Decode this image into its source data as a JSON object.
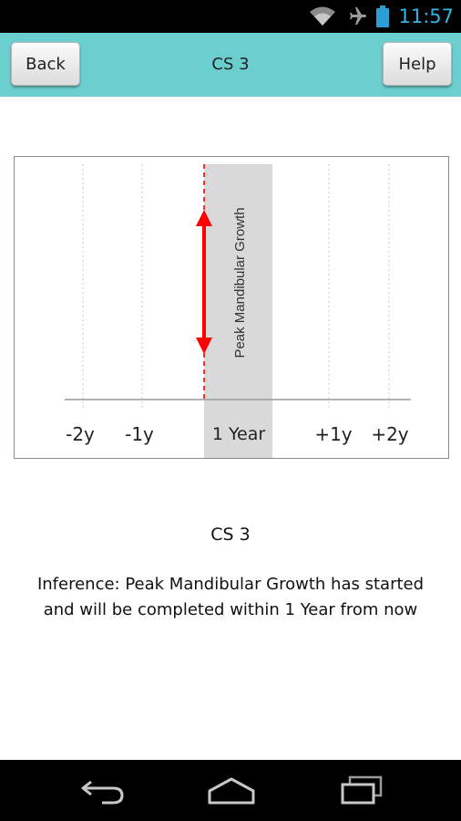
{
  "status_bar": {
    "time": "11:57",
    "icons": [
      "wifi-icon",
      "airplane-icon",
      "battery-icon"
    ]
  },
  "header": {
    "title": "CS 3",
    "back_label": "Back",
    "help_label": "Help",
    "background": "#6ccfcf"
  },
  "chart_data": {
    "type": "timeline",
    "tick_labels": [
      "-2y",
      "-1y",
      "1 Year",
      "+1y",
      "+2y"
    ],
    "band_label": "Peak Mandibular Growth",
    "band_color": "#d9d9d9",
    "marker_color": "#ff0000",
    "grid": true
  },
  "caption": "CS 3",
  "inference": {
    "line1": "Inference: Peak Mandibular Growth has started",
    "line2": "and will be completed within 1 Year from now"
  },
  "nav_bar": {
    "icons": [
      "back-icon",
      "home-icon",
      "recents-icon"
    ]
  }
}
